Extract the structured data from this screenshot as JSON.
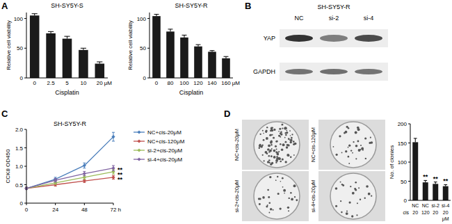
{
  "chart_data": [
    {
      "type": "bar",
      "title": "SH-SY5Y-S",
      "y_label": "Relative cell viability",
      "x_label": "Cisplatin",
      "x_unit": "μM",
      "categories": [
        "0",
        "2.5",
        "5",
        "10",
        "20"
      ],
      "values": [
        105,
        75,
        66,
        47,
        24
      ],
      "errors": [
        3,
        3,
        4,
        3,
        3
      ],
      "ylim": [
        0,
        110
      ],
      "yticks": [
        0,
        50,
        100
      ],
      "color": "#1a1a1a"
    },
    {
      "type": "bar",
      "title": "SH-SY5Y-R",
      "y_label": "Relative cell viability",
      "x_label": "Cisplatin",
      "x_unit": "μM",
      "categories": [
        "0",
        "80",
        "100",
        "120",
        "140",
        "160"
      ],
      "values": [
        104,
        78,
        68,
        53,
        44,
        33
      ],
      "errors": [
        3,
        4,
        4,
        3,
        2,
        3
      ],
      "ylim": [
        0,
        110
      ],
      "yticks": [
        0,
        50,
        100
      ],
      "color": "#1a1a1a"
    },
    {
      "type": "line",
      "title": "SH-SY5Y-R",
      "y_label": "CCK8 OD450",
      "x_unit": "h",
      "x": [
        0,
        24,
        48,
        72
      ],
      "xlim": [
        0,
        72
      ],
      "xticks": [
        0,
        24,
        48,
        72
      ],
      "ylim": [
        0,
        2
      ],
      "yticks": [
        0,
        0.5,
        {
          "value": 1,
          "label": "1.0"
        },
        1.5,
        {
          "value": 2,
          "label": "2.0"
        }
      ],
      "legend": "right",
      "marker": "diamond",
      "series": [
        {
          "name": "NC+cis-20μM",
          "color": "#4a7ebb",
          "values": [
            0.4,
            0.65,
            1.02,
            1.8
          ],
          "errors": [
            0.03,
            0.05,
            0.07,
            0.12
          ]
        },
        {
          "name": "NC+cis-120μM",
          "color": "#c0504d",
          "values": [
            0.4,
            0.5,
            0.6,
            0.7
          ],
          "errors": [
            0.03,
            0.04,
            0.04,
            0.05
          ]
        },
        {
          "name": "si-2+cis-20μM",
          "color": "#9bbb59",
          "values": [
            0.4,
            0.55,
            0.7,
            0.85
          ],
          "errors": [
            0.03,
            0.04,
            0.05,
            0.06
          ]
        },
        {
          "name": "si-4+cis-20μM",
          "color": "#8064a2",
          "values": [
            0.4,
            0.62,
            0.8,
            0.95
          ],
          "errors": [
            0.03,
            0.05,
            0.06,
            0.07
          ]
        }
      ],
      "annotations": [
        "**",
        "**",
        "**"
      ]
    },
    {
      "type": "bar",
      "y_label": "No. of clonies",
      "categories": [
        "NC",
        "NC",
        "si-2",
        "si-4"
      ],
      "dose_title": "cis",
      "dose_labels": [
        "20",
        "120",
        "20",
        "20"
      ],
      "x_unit": "μM",
      "values": [
        152,
        47,
        43,
        37
      ],
      "errors": [
        10,
        5,
        5,
        4
      ],
      "annotations": [
        null,
        "**",
        "**",
        "**"
      ],
      "ylim": [
        0,
        200
      ],
      "yticks": [
        0,
        50,
        100,
        150,
        200
      ],
      "color": "#1a1a1a"
    }
  ],
  "figure": {
    "panel_labels": [
      "A",
      "B",
      "C",
      "D"
    ],
    "blot": {
      "title": "SH-SY5Y-R",
      "lanes": [
        "NC",
        "si-2",
        "si-4"
      ],
      "rows": [
        "YAP",
        "GAPDH"
      ]
    },
    "colonies": {
      "labels": [
        "NC+cis-20μM",
        "NC+cis-120μM",
        "si-2+cis-20μM",
        "si-4+cis-20μM"
      ]
    }
  }
}
